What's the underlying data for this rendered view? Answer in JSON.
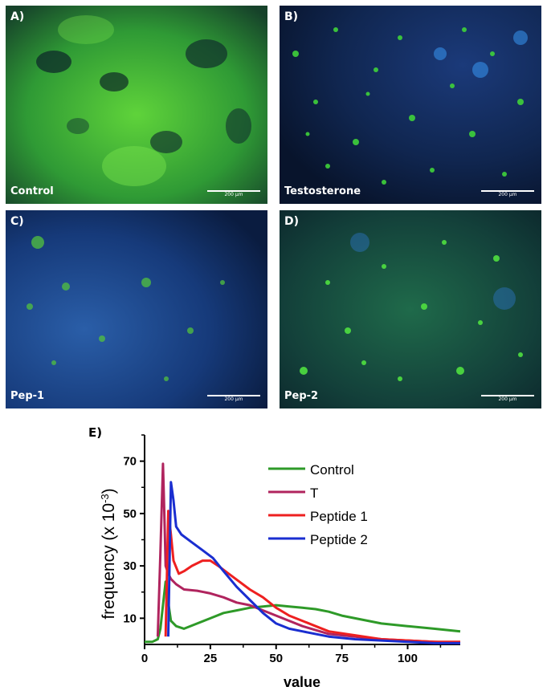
{
  "panels": [
    {
      "letter": "A)",
      "label": "Control",
      "scale_bar": "200 μm",
      "tone": "green"
    },
    {
      "letter": "B)",
      "label": "Testosterone",
      "scale_bar": "200 μm",
      "tone": "mixed"
    },
    {
      "letter": "C)",
      "label": "Pep-1",
      "scale_bar": "200 μm",
      "tone": "blue"
    },
    {
      "letter": "D)",
      "label": "Pep-2",
      "scale_bar": "200 μm",
      "tone": "green-mixed"
    }
  ],
  "colors": {
    "control": "#2e9a28",
    "t": "#b0245e",
    "peptide1": "#ee2020",
    "peptide2": "#1a2ed0"
  },
  "chart_data": {
    "panel_letter": "E)",
    "type": "line",
    "xlabel": "value",
    "ylabel": "frequency (x 10-3)",
    "xlim": [
      0,
      120
    ],
    "ylim": [
      0,
      80
    ],
    "xticks": [
      "0",
      "25",
      "50",
      "75",
      "100"
    ],
    "yticks": [
      "10",
      "30",
      "50",
      "70"
    ],
    "legend_position": "top-right",
    "series": [
      {
        "name": "Control",
        "color": "#2e9a28",
        "points": [
          [
            0,
            1
          ],
          [
            3,
            1
          ],
          [
            5,
            2
          ],
          [
            6,
            6
          ],
          [
            7,
            15
          ],
          [
            8,
            24
          ],
          [
            9,
            16
          ],
          [
            10,
            9
          ],
          [
            12,
            7
          ],
          [
            15,
            6
          ],
          [
            20,
            8
          ],
          [
            25,
            10
          ],
          [
            30,
            12
          ],
          [
            35,
            13
          ],
          [
            40,
            14
          ],
          [
            45,
            14.5
          ],
          [
            50,
            15
          ],
          [
            55,
            14.5
          ],
          [
            60,
            14
          ],
          [
            65,
            13.5
          ],
          [
            70,
            12.5
          ],
          [
            75,
            11
          ],
          [
            80,
            10
          ],
          [
            90,
            8
          ],
          [
            100,
            7
          ],
          [
            110,
            6
          ],
          [
            120,
            5
          ]
        ]
      },
      {
        "name": "T",
        "color": "#b0245e",
        "points": [
          [
            5,
            3
          ],
          [
            6,
            35
          ],
          [
            7,
            69
          ],
          [
            7.5,
            50
          ],
          [
            8,
            30
          ],
          [
            9,
            27
          ],
          [
            10,
            25
          ],
          [
            12,
            23
          ],
          [
            15,
            21
          ],
          [
            20,
            20.5
          ],
          [
            25,
            19.5
          ],
          [
            30,
            18
          ],
          [
            35,
            16
          ],
          [
            40,
            15
          ],
          [
            45,
            13
          ],
          [
            50,
            11
          ],
          [
            55,
            9
          ],
          [
            60,
            7
          ],
          [
            70,
            4
          ],
          [
            80,
            3
          ],
          [
            90,
            2
          ],
          [
            100,
            1.5
          ],
          [
            110,
            1
          ],
          [
            120,
            0.5
          ]
        ]
      },
      {
        "name": "Peptide 1",
        "color": "#ee2020",
        "points": [
          [
            8,
            3
          ],
          [
            9,
            51
          ],
          [
            10,
            42
          ],
          [
            11,
            32
          ],
          [
            13,
            27
          ],
          [
            15,
            28
          ],
          [
            18,
            30
          ],
          [
            22,
            32
          ],
          [
            25,
            32
          ],
          [
            28,
            30
          ],
          [
            32,
            27
          ],
          [
            36,
            24
          ],
          [
            40,
            21
          ],
          [
            45,
            18
          ],
          [
            50,
            14
          ],
          [
            55,
            11
          ],
          [
            60,
            9
          ],
          [
            65,
            7
          ],
          [
            70,
            5
          ],
          [
            80,
            3.5
          ],
          [
            90,
            2
          ],
          [
            100,
            1.5
          ],
          [
            110,
            1
          ],
          [
            120,
            1
          ]
        ]
      },
      {
        "name": "Peptide 2",
        "color": "#1a2ed0",
        "points": [
          [
            9,
            3
          ],
          [
            10,
            62
          ],
          [
            11,
            55
          ],
          [
            12,
            45
          ],
          [
            14,
            42
          ],
          [
            18,
            39
          ],
          [
            22,
            36
          ],
          [
            26,
            33
          ],
          [
            30,
            28
          ],
          [
            35,
            22
          ],
          [
            40,
            17
          ],
          [
            45,
            12
          ],
          [
            50,
            8
          ],
          [
            55,
            6
          ],
          [
            60,
            5
          ],
          [
            70,
            3
          ],
          [
            80,
            2
          ],
          [
            90,
            1.5
          ],
          [
            100,
            1
          ],
          [
            110,
            0.5
          ],
          [
            120,
            0.5
          ]
        ]
      }
    ]
  }
}
